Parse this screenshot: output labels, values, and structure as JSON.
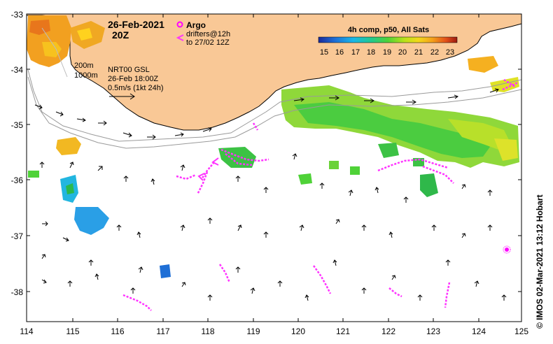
{
  "map": {
    "date": "26-Feb-2021",
    "time": "20Z",
    "argo_label": "Argo",
    "drifters_line1": "drifters@12h",
    "drifters_line2": "to 27/02 12Z",
    "contour_200": "200m",
    "contour_1000": "1000m",
    "source": "NRT00 GSL",
    "source_time": "26-Feb 18:00Z",
    "scale_label": "0.5m/s (1kt 24h)",
    "credit": "© IMOS 02-Mar-2021 13:12 Hobart",
    "colors": {
      "land": "#f9c896",
      "argo": "#ff00ff",
      "drifter": "#ff33ff"
    }
  },
  "colorbar": {
    "title": "4h comp, p50, All Sats",
    "ticks": [
      "15",
      "16",
      "17",
      "18",
      "19",
      "20",
      "21",
      "22",
      "23"
    ],
    "range": [
      15,
      23.5
    ]
  },
  "axes": {
    "lon_ticks": [
      "114",
      "115",
      "116",
      "117",
      "118",
      "119",
      "120",
      "121",
      "122",
      "123",
      "124",
      "125"
    ],
    "lat_ticks": [
      "-33",
      "-34",
      "-35",
      "-36",
      "-37",
      "-38"
    ],
    "lon_range": [
      114,
      125
    ],
    "lat_range": [
      -38.5,
      -33
    ]
  }
}
